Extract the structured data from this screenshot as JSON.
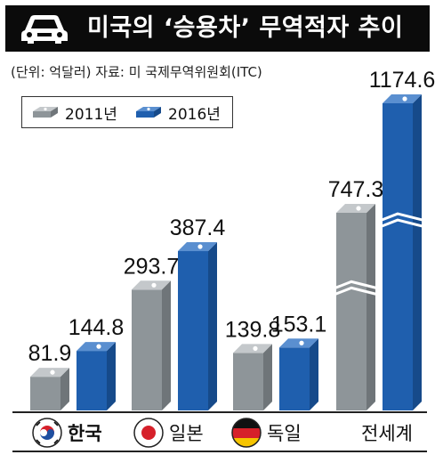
{
  "header": {
    "title": "미국의 ‘승용차’ 무역적자 추이"
  },
  "source_note": "(단위: 억달러) 자료: 미 국제무역위원회(ITC)",
  "colors": {
    "series_2011": "#8e9599",
    "series_2016": "#1f5fae",
    "title_bg": "#0b0b0b"
  },
  "icons": {
    "title_icon": "car-icon",
    "flags": [
      "korea-flag-icon",
      "japan-flag-icon",
      "germany-flag-icon"
    ]
  },
  "chart_data": {
    "type": "bar",
    "title": "미국의 ‘승용차’ 무역적자 추이",
    "categories": [
      "한국",
      "일본",
      "독일",
      "전세계"
    ],
    "series": [
      {
        "name": "2011년",
        "values": [
          81.9,
          293.7,
          139.8,
          747.3
        ]
      },
      {
        "name": "2016년",
        "values": [
          144.8,
          387.4,
          153.1,
          1174.6
        ]
      }
    ],
    "value_labels": {
      "2011년": [
        "81.9",
        "293.7",
        "139.8",
        "747.3"
      ],
      "2016년": [
        "144.8",
        "387.4",
        "153.1",
        "1174.6"
      ]
    },
    "unit": "억달러",
    "axis_break_on": "전세계",
    "legend_position": "top-left",
    "grid": false
  }
}
